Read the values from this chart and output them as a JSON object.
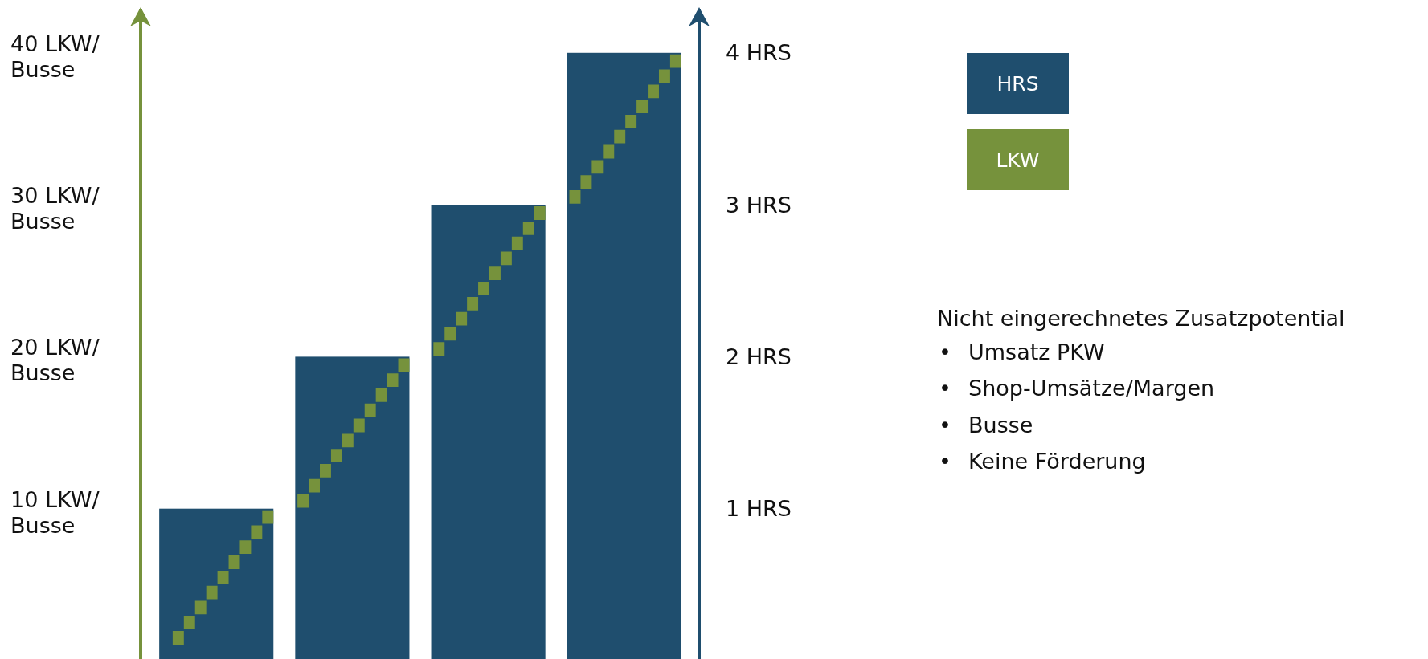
{
  "chart_data": {
    "type": "bar",
    "categories": [
      null,
      null,
      null,
      null
    ],
    "series": [
      {
        "name": "HRS",
        "color": "#1f4e6e",
        "values": [
          1,
          2,
          3,
          4
        ],
        "axis": "y2"
      }
    ],
    "ylim": [
      0,
      43
    ],
    "yticks": [
      {
        "value": 10,
        "label": "10 LKW/\nBusse"
      },
      {
        "value": 20,
        "label": "20 LKW/\nBusse"
      },
      {
        "value": 30,
        "label": "30 LKW/\nBusse"
      },
      {
        "value": 40,
        "label": "40 LKW/\nBusse"
      }
    ],
    "y2lim": [
      0,
      4.3
    ],
    "y2ticks": [
      {
        "value": 1,
        "label": "1 HRS"
      },
      {
        "value": 2,
        "label": "2 HRS"
      },
      {
        "value": 3,
        "label": "3 HRS"
      },
      {
        "value": 4,
        "label": "4 HRS"
      }
    ],
    "legend": "top right",
    "annotations": [
      "LKW",
      "Nicht eingerechnetes Zusatzpotential",
      "• Umsatz PKW",
      "• Shop-Umsätze/Margen",
      "• Busse",
      "• Keine Förderung"
    ]
  }
}
